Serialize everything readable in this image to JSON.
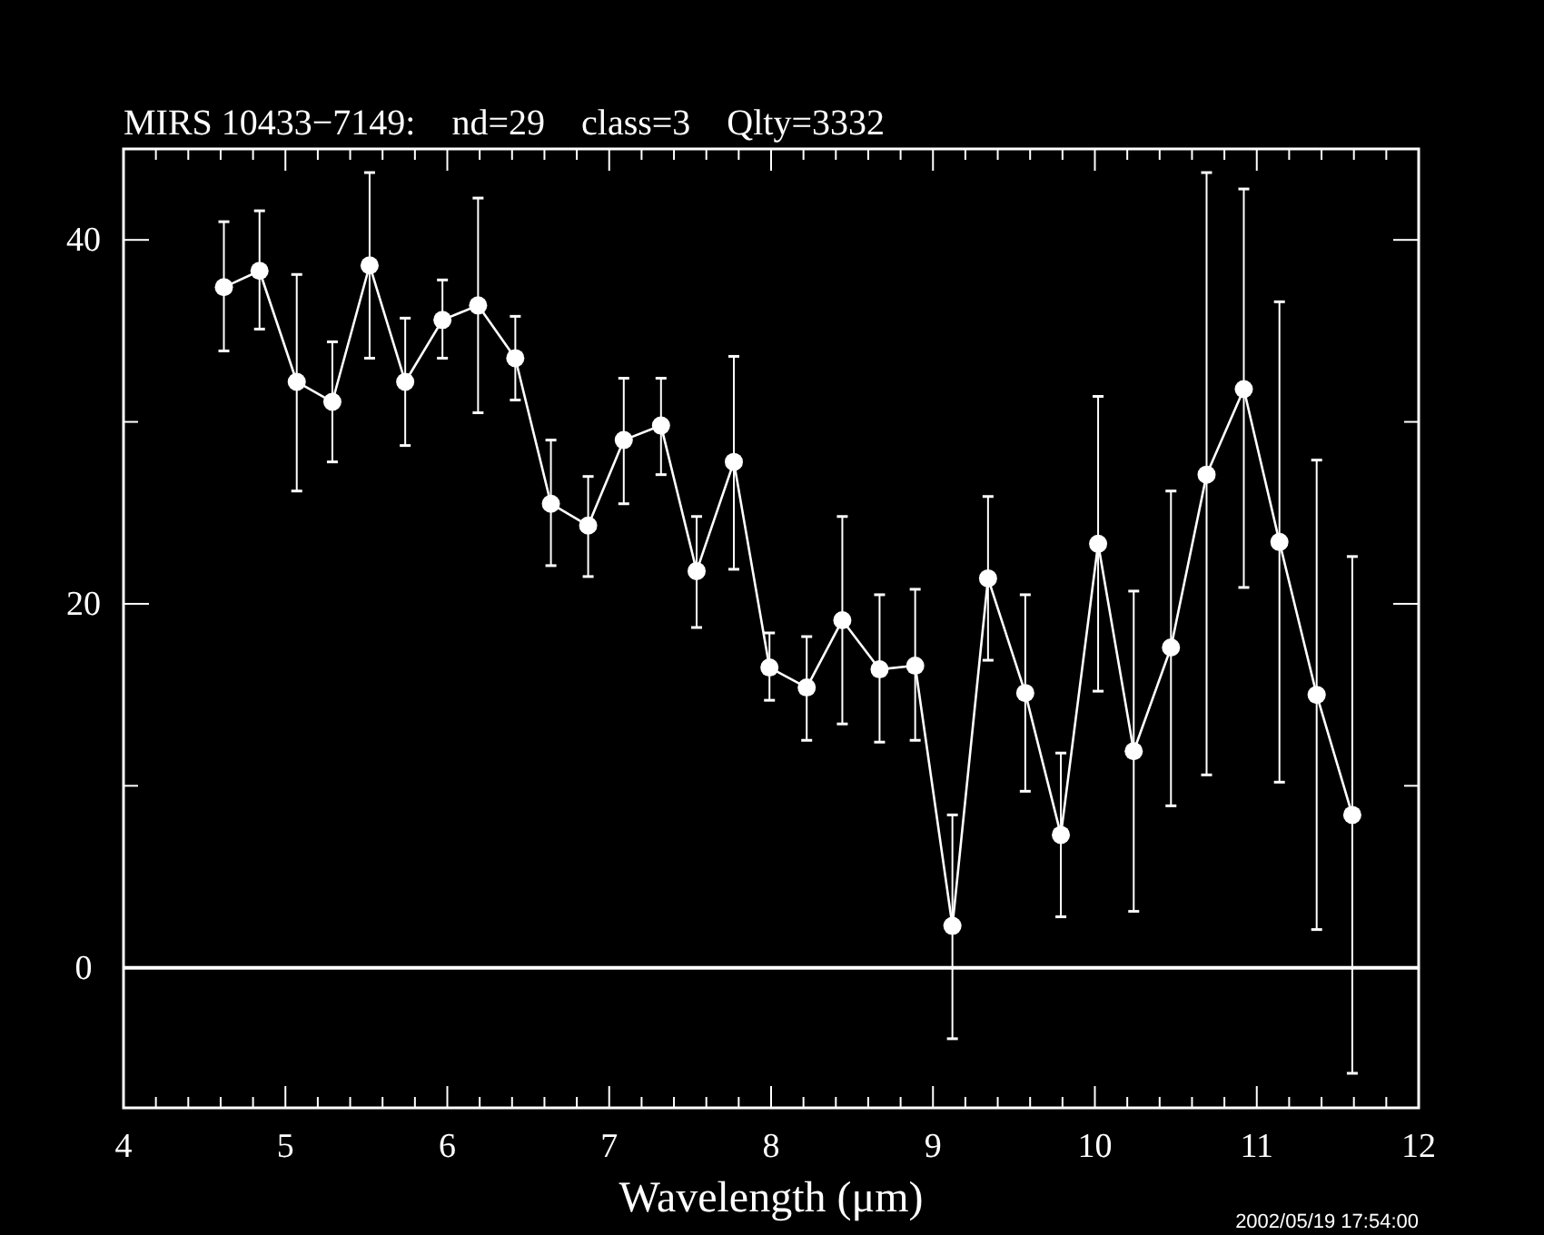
{
  "chart_data": {
    "type": "line",
    "title": "MIRS 10433−7149:    nd=29    class=3    Qlty=3332",
    "xlabel": "Wavelength (μm)",
    "marker": "circle",
    "line_style": "solid",
    "grid": false,
    "xlim": [
      4,
      12
    ],
    "ylim": [
      -7.7,
      45
    ],
    "xticks": [
      4,
      {
        "value": 4.2,
        "label": null
      },
      {
        "value": 4.4,
        "label": null
      },
      {
        "value": 4.6,
        "label": null
      },
      {
        "value": 4.8,
        "label": null
      },
      5,
      {
        "value": 5.2,
        "label": null
      },
      {
        "value": 5.4,
        "label": null
      },
      {
        "value": 5.6,
        "label": null
      },
      {
        "value": 5.8,
        "label": null
      },
      6,
      {
        "value": 6.2,
        "label": null
      },
      {
        "value": 6.4,
        "label": null
      },
      {
        "value": 6.6,
        "label": null
      },
      {
        "value": 6.8,
        "label": null
      },
      7,
      {
        "value": 7.2,
        "label": null
      },
      {
        "value": 7.4,
        "label": null
      },
      {
        "value": 7.6,
        "label": null
      },
      {
        "value": 7.8,
        "label": null
      },
      8,
      {
        "value": 8.2,
        "label": null
      },
      {
        "value": 8.4,
        "label": null
      },
      {
        "value": 8.6,
        "label": null
      },
      {
        "value": 8.8,
        "label": null
      },
      9,
      {
        "value": 9.2,
        "label": null
      },
      {
        "value": 9.4,
        "label": null
      },
      {
        "value": 9.6,
        "label": null
      },
      {
        "value": 9.8,
        "label": null
      },
      10,
      {
        "value": 10.2,
        "label": null
      },
      {
        "value": 10.4,
        "label": null
      },
      {
        "value": 10.6,
        "label": null
      },
      {
        "value": 10.8,
        "label": null
      },
      11,
      {
        "value": 11.2,
        "label": null
      },
      {
        "value": 11.4,
        "label": null
      },
      {
        "value": 11.6,
        "label": null
      },
      {
        "value": 11.8,
        "label": null
      },
      12
    ],
    "yticks": [
      0,
      {
        "value": 10,
        "label": null
      },
      20,
      {
        "value": 30,
        "label": null
      },
      40
    ],
    "ref_lines": [
      {
        "axis": "y",
        "value": 0,
        "color": "#ffffff"
      }
    ],
    "annotations": [
      "2002/05/19 17:54:00"
    ],
    "series": [
      {
        "color": "#ffffff",
        "x": [
          4.62,
          4.84,
          5.07,
          5.29,
          5.52,
          5.74,
          5.97,
          6.19,
          6.42,
          6.64,
          6.87,
          7.09,
          7.32,
          7.54,
          7.77,
          7.99,
          8.22,
          8.44,
          8.67,
          8.89,
          9.12,
          9.34,
          9.57,
          9.79,
          10.02,
          10.24,
          10.47,
          10.69,
          10.92,
          11.14,
          11.37,
          11.59
        ],
        "values": [
          37.4,
          38.3,
          32.2,
          31.1,
          38.6,
          32.2,
          35.6,
          36.4,
          33.5,
          25.5,
          24.3,
          29.0,
          29.8,
          21.8,
          27.8,
          16.5,
          15.4,
          19.1,
          16.4,
          16.6,
          2.3,
          21.4,
          15.1,
          7.3,
          23.3,
          11.9,
          17.6,
          27.1,
          31.8,
          23.4,
          15.0,
          8.4
        ],
        "errors": [
          [
            33.9,
            41.0
          ],
          [
            35.1,
            41.6
          ],
          [
            26.2,
            38.1
          ],
          [
            27.8,
            34.4
          ],
          [
            33.5,
            43.7
          ],
          [
            28.7,
            35.7
          ],
          [
            33.5,
            37.8
          ],
          [
            30.5,
            42.3
          ],
          [
            31.2,
            35.8
          ],
          [
            22.1,
            29.0
          ],
          [
            21.5,
            27.0
          ],
          [
            25.5,
            32.4
          ],
          [
            27.1,
            32.4
          ],
          [
            18.7,
            24.8
          ],
          [
            21.9,
            33.6
          ],
          [
            14.7,
            18.4
          ],
          [
            12.5,
            18.2
          ],
          [
            13.4,
            24.8
          ],
          [
            12.4,
            20.5
          ],
          [
            12.5,
            20.8
          ],
          [
            -3.9,
            8.4
          ],
          [
            16.9,
            25.9
          ],
          [
            9.7,
            20.5
          ],
          [
            2.8,
            11.8
          ],
          [
            15.2,
            31.4
          ],
          [
            3.1,
            20.7
          ],
          [
            8.9,
            26.2
          ],
          [
            10.6,
            43.7
          ],
          [
            20.9,
            42.8
          ],
          [
            10.2,
            36.6
          ],
          [
            2.1,
            27.9
          ],
          [
            -5.8,
            22.6
          ]
        ]
      }
    ]
  }
}
